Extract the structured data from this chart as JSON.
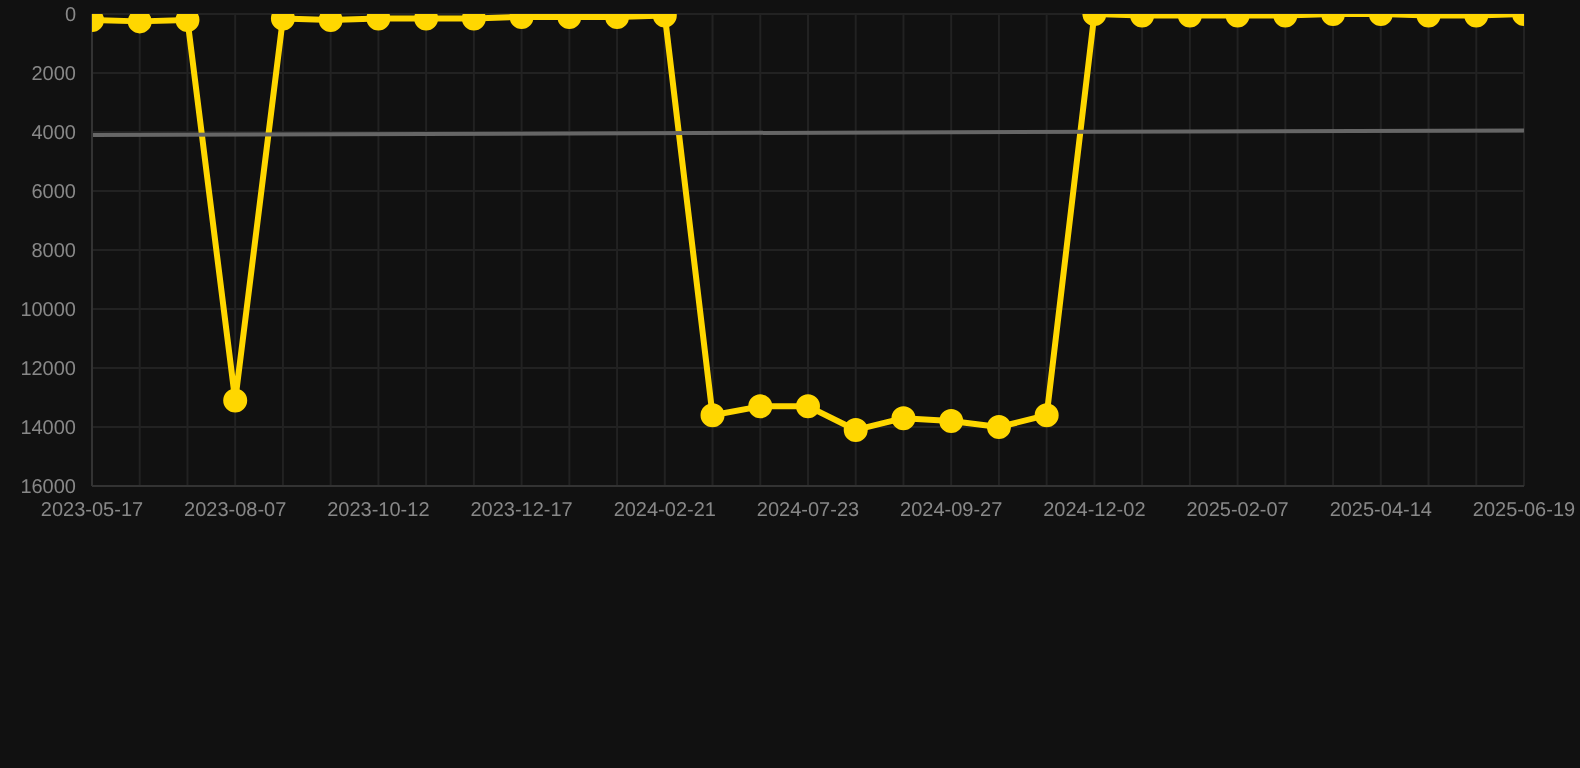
{
  "chart_data": {
    "type": "line",
    "categories": [
      "2023-05-17",
      null,
      null,
      "2023-08-07",
      null,
      null,
      "2023-10-12",
      null,
      null,
      "2023-12-17",
      null,
      null,
      "2024-02-21",
      null,
      null,
      "2024-07-23",
      null,
      null,
      "2024-09-27",
      null,
      null,
      "2024-12-02",
      null,
      null,
      "2025-02-07",
      null,
      null,
      "2025-04-14",
      null,
      null,
      "2025-06-19"
    ],
    "series": [
      {
        "color": "#ffd700",
        "marker": "circle",
        "values": [
          200,
          250,
          200,
          13100,
          150,
          200,
          150,
          150,
          150,
          100,
          100,
          100,
          50,
          13600,
          13300,
          13300,
          14100,
          13700,
          13800,
          14000,
          13600,
          0,
          50,
          50,
          50,
          50,
          0,
          0,
          50,
          50,
          0
        ]
      },
      {
        "type": "line",
        "color": "#666666",
        "marker": "none",
        "values": [
          4100,
          null,
          null,
          null,
          null,
          null,
          null,
          null,
          null,
          null,
          null,
          null,
          null,
          null,
          null,
          null,
          null,
          null,
          null,
          null,
          null,
          null,
          null,
          null,
          null,
          null,
          null,
          null,
          null,
          null,
          3950
        ]
      }
    ],
    "ylim": [
      16000,
      0
    ],
    "yticks": [
      0,
      2000,
      4000,
      6000,
      8000,
      10000,
      12000,
      14000,
      16000
    ],
    "grid": true
  }
}
